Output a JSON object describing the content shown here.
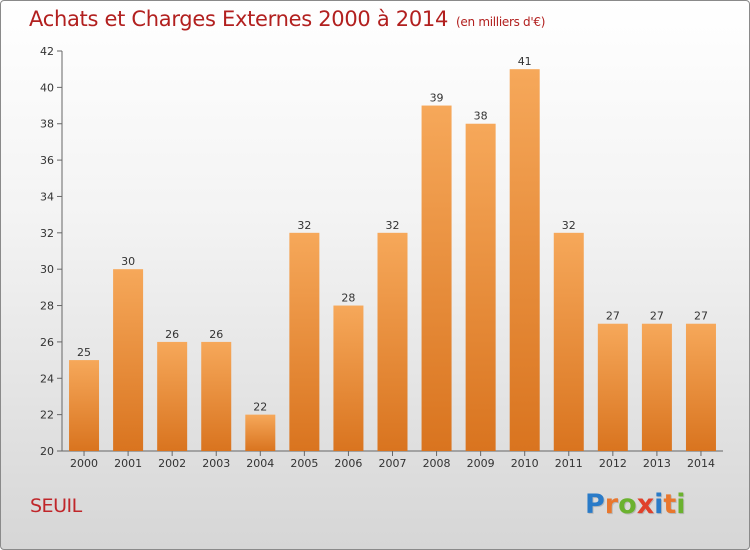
{
  "title": "Achats et Charges Externes 2000 à 2014",
  "subtitle": "(en milliers d'€)",
  "place": "SEUIL",
  "logo": {
    "letters": [
      "P",
      "r",
      "o",
      "x",
      "i",
      "t",
      "i"
    ],
    "colors": [
      "#2a7bc8",
      "#e8772e",
      "#6bb22f",
      "#e0412b",
      "#2a7bc8",
      "#e8772e",
      "#6bb22f"
    ]
  },
  "colors": {
    "bar_top": "#f6a85a",
    "bar_bottom": "#d9741f",
    "title": "#b2201f"
  },
  "chart_data": {
    "type": "bar",
    "title": "Achats et Charges Externes 2000 à 2014",
    "subtitle": "(en milliers d'€)",
    "categories": [
      "2000",
      "2001",
      "2002",
      "2003",
      "2004",
      "2005",
      "2006",
      "2007",
      "2008",
      "2009",
      "2010",
      "2011",
      "2012",
      "2013",
      "2014"
    ],
    "values": [
      25,
      30,
      26,
      26,
      22,
      32,
      28,
      32,
      39,
      38,
      41,
      32,
      27,
      27,
      27
    ],
    "ylim": [
      20,
      42
    ],
    "yticks": [
      20,
      22,
      24,
      26,
      28,
      30,
      32,
      34,
      36,
      38,
      40,
      42
    ],
    "grid": false
  }
}
